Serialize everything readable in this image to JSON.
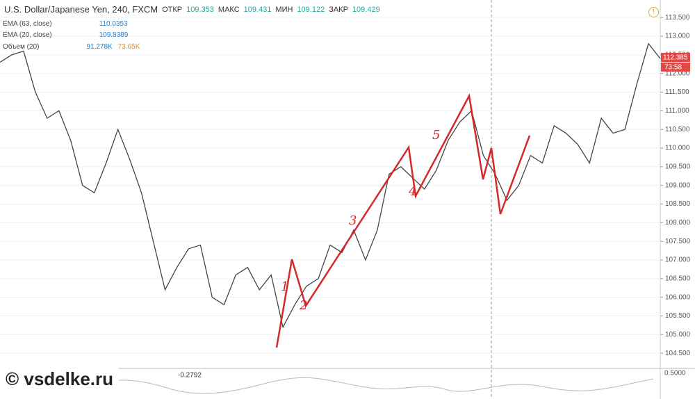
{
  "chart_data": {
    "type": "line",
    "title": "U.S. Dollar/Japanese Yen, 240, FXCM",
    "ohlc": [
      {
        "label": "ОТКР",
        "value": "109.353"
      },
      {
        "label": "МАКС",
        "value": "109.431"
      },
      {
        "label": "МИН",
        "value": "109.122"
      },
      {
        "label": "ЗАКР",
        "value": "109.429"
      }
    ],
    "indicators": [
      {
        "name": "EMA (63, close)",
        "values": [
          "110.0353"
        ]
      },
      {
        "name": "EMA (20, close)",
        "values": [
          "109.8389"
        ]
      },
      {
        "name": "Объем (20)",
        "values": [
          "91.278K",
          "73.65K"
        ]
      }
    ],
    "series": [
      {
        "name": "USDJPY",
        "color": "#444444",
        "values": [
          112.3,
          112.5,
          112.6,
          111.5,
          110.8,
          111.0,
          110.2,
          109.0,
          108.8,
          109.6,
          110.5,
          109.7,
          108.8,
          107.5,
          106.2,
          106.8,
          107.3,
          107.4,
          106.0,
          105.8,
          106.6,
          106.8,
          106.2,
          106.6,
          105.2,
          105.8,
          106.3,
          106.5,
          107.4,
          107.2,
          107.8,
          107.0,
          107.8,
          109.3,
          109.5,
          109.2,
          108.9,
          109.4,
          110.2,
          110.7,
          111.0,
          109.8,
          109.3,
          108.6,
          109.0,
          109.8,
          109.6,
          110.6,
          110.4,
          110.1,
          109.6,
          110.8,
          110.4,
          110.5,
          111.7,
          112.8,
          112.4
        ]
      }
    ],
    "last_price": "112.385",
    "countdown": "73:58",
    "annotations": [
      "1",
      "2",
      "3",
      "4",
      "5"
    ],
    "lower_pane": {
      "value": "-0.2792",
      "tick": "0.5000"
    },
    "watermark": "© vsdelke.ru",
    "ylim": [
      104.13,
      113.97
    ],
    "yticks": [
      {
        "value": 104.5,
        "label": "104.500"
      },
      {
        "value": 105,
        "label": "105.000"
      },
      {
        "value": 105.5,
        "label": "105.500"
      },
      {
        "value": 106,
        "label": "106.000"
      },
      {
        "value": 106.5,
        "label": "106.500"
      },
      {
        "value": 107,
        "label": "107.000"
      },
      {
        "value": 107.5,
        "label": "107.500"
      },
      {
        "value": 108,
        "label": "108.000"
      },
      {
        "value": 108.5,
        "label": "108.500"
      },
      {
        "value": 109,
        "label": "109.000"
      },
      {
        "value": 109.5,
        "label": "109.500"
      },
      {
        "value": 110,
        "label": "110.000"
      },
      {
        "value": 110.5,
        "label": "110.500"
      },
      {
        "value": 111,
        "label": "111.000"
      },
      {
        "value": 111.5,
        "label": "111.500"
      },
      {
        "value": 112,
        "label": "112.000"
      },
      {
        "value": 112.5,
        "label": "112.500"
      },
      {
        "value": 113,
        "label": "113.000"
      },
      {
        "value": 113.5,
        "label": "113.500"
      }
    ],
    "grid": true
  }
}
